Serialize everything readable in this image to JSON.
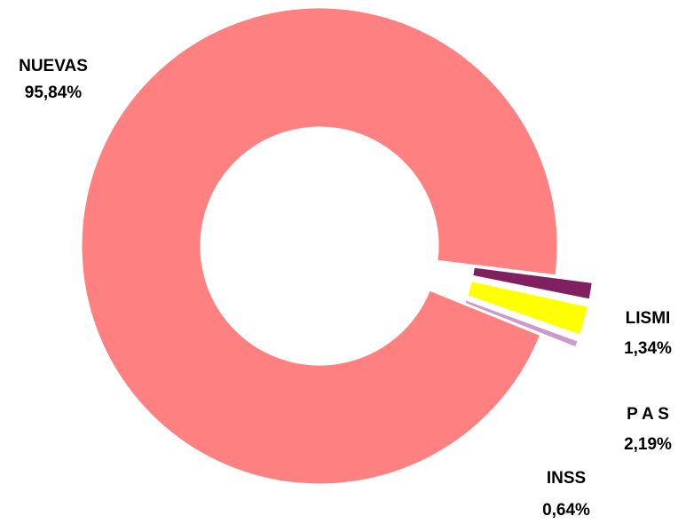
{
  "chart_data": {
    "type": "pie",
    "variant": "doughnut",
    "title": "",
    "slices": [
      {
        "name": "NUEVAS",
        "value": 95.84,
        "value_label": "95,84%",
        "color": "#FF8080",
        "exploded": false
      },
      {
        "name": "LISMI",
        "value": 1.34,
        "value_label": "1,34%",
        "color": "#802060",
        "exploded": true
      },
      {
        "name": "P A S",
        "value": 2.19,
        "value_label": "2,19%",
        "color": "#FFFF00",
        "exploded": true
      },
      {
        "name": "INSS",
        "value": 0.64,
        "value_label": "0,64%",
        "color": "#CC99CC",
        "exploded": true
      }
    ],
    "legend": "none",
    "data_labels": "outside"
  }
}
